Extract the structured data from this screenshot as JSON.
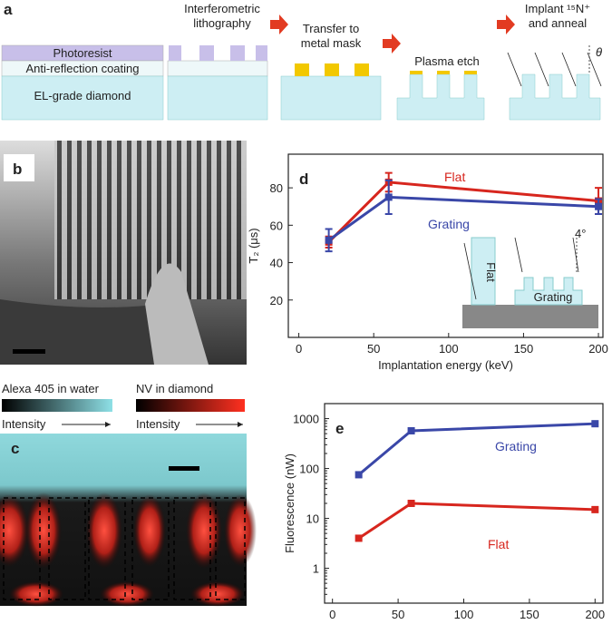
{
  "panels": {
    "a": "a",
    "b": "b",
    "c": "c"
  },
  "process": {
    "layers": [
      "Photoresist",
      "Anti-reflection coating",
      "EL-grade diamond"
    ],
    "steps": [
      [
        "Interferometric",
        "lithography"
      ],
      [
        "Transfer to",
        "metal mask"
      ],
      [
        "Plasma etch"
      ],
      [
        "Implant ¹⁵N⁺",
        "and anneal"
      ]
    ],
    "angle": "θ"
  },
  "image_c": {
    "legend": [
      "Alexa 405 in water",
      "NV in diamond"
    ],
    "intensity": [
      "Intensity",
      "Intensity"
    ]
  },
  "inset_d": {
    "flat": "Flat",
    "grating": "Grating",
    "angle": "4°"
  },
  "chart_data": [
    {
      "type": "line",
      "panel_label": "d",
      "xlabel": "Implantation energy (keV)",
      "ylabel": "T₂ (μs)",
      "x": [
        20,
        60,
        200
      ],
      "xlim": [
        -7,
        203
      ],
      "xticks": [
        0,
        50,
        100,
        150,
        200
      ],
      "ylim": [
        0,
        98
      ],
      "yticks": [
        20,
        40,
        60,
        80
      ],
      "series": [
        {
          "name": "Flat",
          "color": "#d7261e",
          "values": [
            51,
            83,
            73
          ],
          "errors": [
            3,
            5,
            7
          ]
        },
        {
          "name": "Grating",
          "color": "#3a47a8",
          "values": [
            52,
            75,
            70
          ],
          "errors": [
            6,
            9,
            4
          ]
        }
      ]
    },
    {
      "type": "line",
      "panel_label": "e",
      "xlabel": "Implantation energy (keV)",
      "ylabel": "Fluorescence (nW)",
      "x": [
        20,
        60,
        200
      ],
      "xlim": [
        -6,
        206
      ],
      "xticks": [
        0,
        50,
        100,
        150,
        200
      ],
      "ylim": [
        0.2,
        2000
      ],
      "yticks": [
        1,
        10,
        100,
        1000
      ],
      "log_y": true,
      "series": [
        {
          "name": "Grating",
          "color": "#3a47a8",
          "values": [
            75,
            570,
            790
          ]
        },
        {
          "name": "Flat",
          "color": "#d7261e",
          "values": [
            4,
            20,
            15
          ]
        }
      ]
    }
  ]
}
